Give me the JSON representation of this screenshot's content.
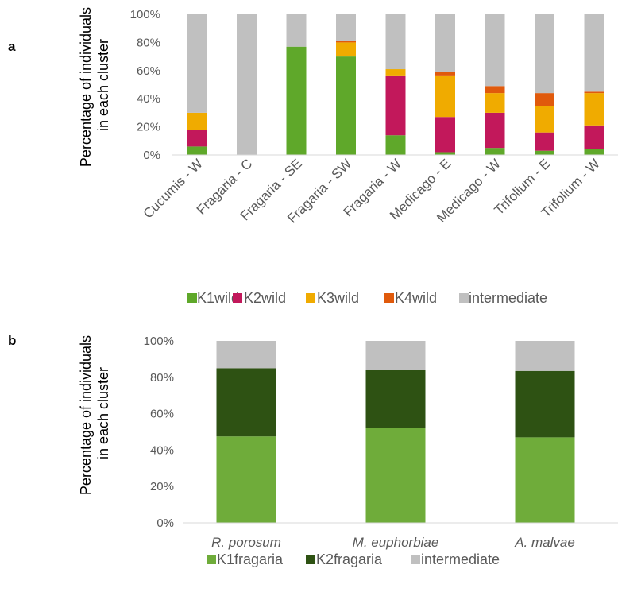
{
  "chart_data": [
    {
      "panel": "a",
      "type": "bar",
      "stacked": true,
      "ylabel": "Percentage of individuals in each cluster",
      "ylabel_lines": [
        "Percentage of individuals",
        "in each cluster"
      ],
      "ylim": [
        0,
        100
      ],
      "yticks": [
        "0%",
        "20%",
        "40%",
        "60%",
        "80%",
        "100%"
      ],
      "categories": [
        "Cucumis - W",
        "Fragaria - C",
        "Fragaria - SE",
        "Fragaria - SW",
        "Fragaria - W",
        "Medicago - E",
        "Medicago - W",
        "Trifolium - E",
        "Trifolium - W"
      ],
      "series": [
        {
          "name": "K1wild",
          "color": "#5fa82a",
          "values": [
            6,
            0,
            77,
            70,
            14,
            2,
            5,
            3,
            4
          ]
        },
        {
          "name": "K2wild",
          "color": "#c2185b",
          "values": [
            12,
            0,
            0,
            0,
            42,
            25,
            25,
            13,
            17
          ]
        },
        {
          "name": "K3wild",
          "color": "#f0ab00",
          "values": [
            12,
            0,
            0,
            10,
            5,
            29,
            14,
            19,
            23
          ]
        },
        {
          "name": "K4wild",
          "color": "#e05a0c",
          "values": [
            0,
            0,
            0,
            1,
            0,
            3,
            5,
            9,
            1
          ]
        },
        {
          "name": "intermediate",
          "color": "#c0c0c0",
          "values": [
            70,
            100,
            23,
            19,
            39,
            41,
            51,
            56,
            55
          ]
        }
      ],
      "legend_position": "bottom",
      "grid": false
    },
    {
      "panel": "b",
      "type": "bar",
      "stacked": true,
      "ylabel": "Percentage of individuals in each cluster",
      "ylabel_lines": [
        "Percentage of individuals",
        "in each cluster"
      ],
      "ylim": [
        0,
        100
      ],
      "yticks": [
        "0%",
        "20%",
        "40%",
        "60%",
        "80%",
        "100%"
      ],
      "categories": [
        "R. porosum",
        "M. euphorbiae",
        "A. malvae"
      ],
      "series": [
        {
          "name": "K1fragaria",
          "color": "#6fac3a",
          "values": [
            47.5,
            52,
            47
          ]
        },
        {
          "name": "K2fragaria",
          "color": "#2e5213",
          "values": [
            37.5,
            32,
            36.5
          ]
        },
        {
          "name": "intermediate",
          "color": "#c0c0c0",
          "values": [
            15,
            16,
            16.5
          ]
        }
      ],
      "legend_position": "bottom",
      "grid": false
    }
  ]
}
